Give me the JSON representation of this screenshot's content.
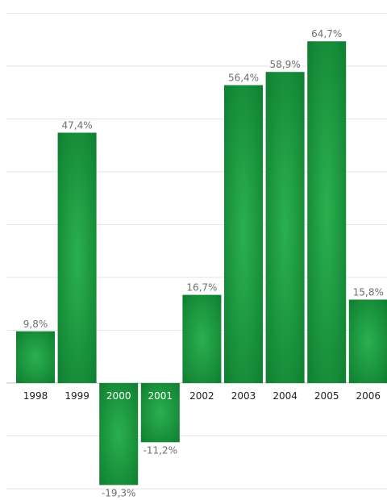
{
  "chart_data": {
    "type": "bar",
    "title": "",
    "xlabel": "",
    "ylabel": "",
    "categories": [
      "1998",
      "1999",
      "2000",
      "2001",
      "2002",
      "2003",
      "2004",
      "2005",
      "2006"
    ],
    "values": [
      9.8,
      47.4,
      -19.3,
      -11.2,
      16.7,
      56.4,
      58.9,
      64.7,
      15.8
    ],
    "value_labels": [
      "9,8%",
      "47,4%",
      "-19,3%",
      "-11,2%",
      "16,7%",
      "56,4%",
      "58,9%",
      "64,7%",
      "15,8%"
    ],
    "ylim": [
      -20,
      70
    ],
    "grid": true,
    "legend": "none",
    "colors": {
      "bar": "#1a9a3e",
      "bar_dark": "#0f7a2e",
      "grid": "#e6e6e6",
      "axis": "#cfcfcf",
      "label": "#6f6f6f",
      "tick_text": "#222222",
      "tick_text_on_bar": "#ffffff"
    }
  }
}
